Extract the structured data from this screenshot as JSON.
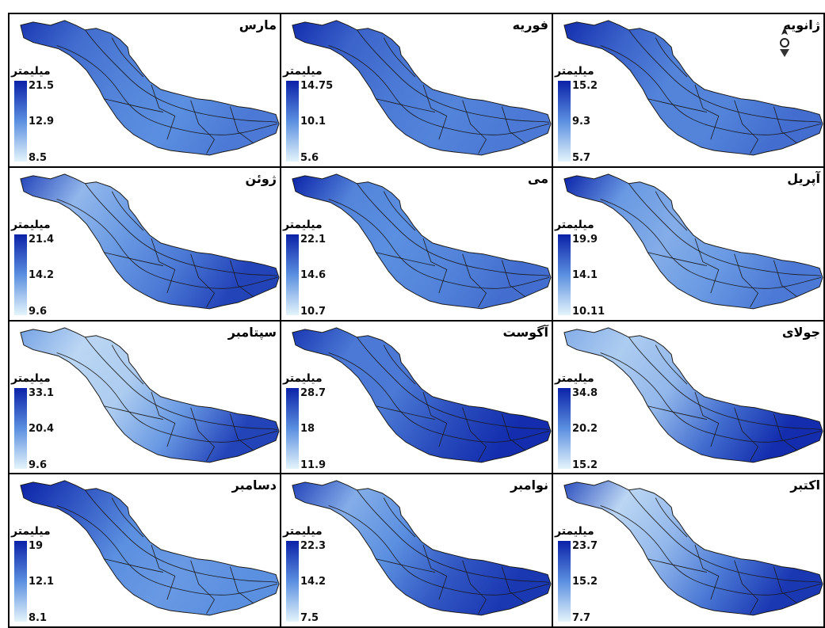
{
  "map": {
    "unit_label": "میلیمتر",
    "colors": {
      "low": "#e4f4fb",
      "mid": "#5b8fe0",
      "high": "#0b22a8",
      "outline": "#1a1a1a"
    },
    "panels": [
      {
        "month": "مارس",
        "max": "21.5",
        "mid": "12.9",
        "min": "8.5",
        "intensity": [
          0.9,
          0.65,
          0.55,
          0.5,
          0.6
        ]
      },
      {
        "month": "فوریه",
        "max": "14.75",
        "mid": "10.1",
        "min": "5.6",
        "intensity": [
          0.95,
          0.7,
          0.6,
          0.55,
          0.6
        ]
      },
      {
        "month": "ژانویه",
        "max": "15.2",
        "mid": "9.3",
        "min": "5.7",
        "intensity": [
          0.95,
          0.7,
          0.55,
          0.55,
          0.65
        ]
      },
      {
        "month": "ژوئن",
        "max": "21.4",
        "mid": "14.2",
        "min": "9.6",
        "intensity": [
          0.85,
          0.3,
          0.45,
          0.6,
          0.85
        ]
      },
      {
        "month": "می",
        "max": "22.1",
        "mid": "14.6",
        "min": "10.7",
        "intensity": [
          1.0,
          0.55,
          0.5,
          0.55,
          0.65
        ]
      },
      {
        "month": "آپریل",
        "max": "19.9",
        "mid": "14.1",
        "min": "10.11",
        "intensity": [
          1.0,
          0.45,
          0.35,
          0.45,
          0.6
        ]
      },
      {
        "month": "سپتامبر",
        "max": "33.1",
        "mid": "20.4",
        "min": "9.6",
        "intensity": [
          0.4,
          0.15,
          0.2,
          0.45,
          0.85
        ]
      },
      {
        "month": "آگوست",
        "max": "28.7",
        "mid": "18",
        "min": "11.9",
        "intensity": [
          0.9,
          0.6,
          0.6,
          0.8,
          0.95
        ]
      },
      {
        "month": "جولای",
        "max": "34.8",
        "mid": "20.2",
        "min": "15.2",
        "intensity": [
          0.35,
          0.2,
          0.3,
          0.65,
          0.95
        ]
      },
      {
        "month": "دسامبر",
        "max": "19",
        "mid": "12.1",
        "min": "8.1",
        "intensity": [
          1.0,
          0.75,
          0.5,
          0.45,
          0.5
        ]
      },
      {
        "month": "نوامبر",
        "max": "22.3",
        "mid": "14.2",
        "min": "7.5",
        "intensity": [
          0.85,
          0.35,
          0.5,
          0.75,
          0.9
        ]
      },
      {
        "month": "اکتبر",
        "max": "23.7",
        "mid": "15.2",
        "min": "7.7",
        "intensity": [
          0.8,
          0.15,
          0.3,
          0.6,
          0.9
        ]
      }
    ]
  }
}
